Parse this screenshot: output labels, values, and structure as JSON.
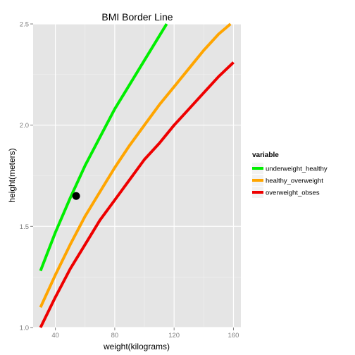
{
  "chart_data": {
    "type": "line",
    "title": "BMI Border Line",
    "xlabel": "weight(kilograms)",
    "ylabel": "height(meters)",
    "xlim": [
      25,
      165
    ],
    "ylim": [
      1.0,
      2.5
    ],
    "x_ticks": [
      40,
      80,
      120,
      160
    ],
    "y_ticks": [
      1.0,
      1.5,
      2.0,
      2.5
    ],
    "x_tick_labels": [
      "40",
      "80",
      "120",
      "160"
    ],
    "y_tick_labels": [
      "1.0",
      "1.5",
      "2.0",
      "2.5"
    ],
    "grid": true,
    "legend_position": "right",
    "legend_title": "variable",
    "series": [
      {
        "name": "underweight_healthy",
        "color": "#00ee00",
        "x": [
          30,
          40,
          50,
          60,
          70,
          80,
          90,
          100,
          110,
          115
        ],
        "y": [
          1.28,
          1.47,
          1.64,
          1.8,
          1.94,
          2.08,
          2.2,
          2.32,
          2.44,
          2.5
        ]
      },
      {
        "name": "healthy_overweight",
        "color": "#ffa500",
        "x": [
          30,
          40,
          50,
          60,
          70,
          80,
          90,
          100,
          110,
          120,
          130,
          140,
          150,
          158
        ],
        "y": [
          1.1,
          1.26,
          1.41,
          1.55,
          1.67,
          1.79,
          1.9,
          2.0,
          2.1,
          2.19,
          2.28,
          2.37,
          2.45,
          2.5
        ]
      },
      {
        "name": "overweight_obses",
        "color": "#ee0000",
        "x": [
          30,
          40,
          50,
          60,
          70,
          80,
          90,
          100,
          110,
          120,
          130,
          140,
          150,
          160
        ],
        "y": [
          1.0,
          1.15,
          1.29,
          1.41,
          1.53,
          1.63,
          1.73,
          1.83,
          1.91,
          2.0,
          2.08,
          2.16,
          2.24,
          2.31
        ]
      }
    ],
    "points": [
      {
        "x": 54,
        "y": 1.65,
        "color": "#000000"
      }
    ]
  }
}
